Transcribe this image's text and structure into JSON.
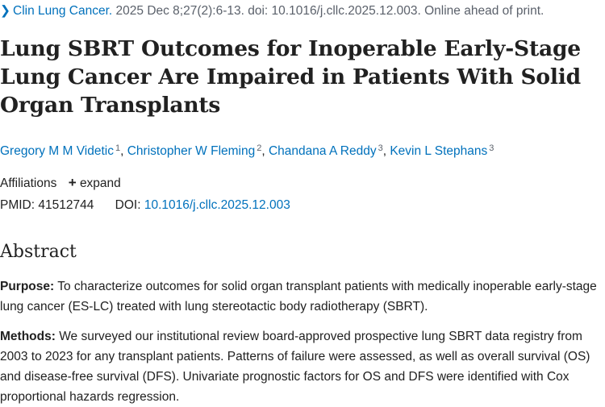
{
  "citation": {
    "journal": "Clin Lung Cancer.",
    "details": " 2025 Dec 8;27(2):6-13. doi: 10.1016/j.cllc.2025.12.003. Online ahead of print."
  },
  "title": "Lung SBRT Outcomes for Inoperable Early-Stage Lung Cancer Are Impaired in Patients With Solid Organ Transplants",
  "authors": [
    {
      "name": "Gregory M M Videtic",
      "sup": "1"
    },
    {
      "name": "Christopher W Fleming",
      "sup": "2"
    },
    {
      "name": "Chandana A Reddy",
      "sup": "3"
    },
    {
      "name": "Kevin L Stephans",
      "sup": "3"
    }
  ],
  "affiliations": {
    "label": "Affiliations",
    "expand_label": "expand"
  },
  "ids": {
    "pmid_label": "PMID:",
    "pmid": "41512744",
    "doi_label": "DOI:",
    "doi": "10.1016/j.cllc.2025.12.003"
  },
  "abstract": {
    "heading": "Abstract",
    "purpose_label": "Purpose:",
    "purpose_text": " To characterize outcomes for solid organ transplant patients with medically inoperable early-stage lung cancer (ES-LC) treated with lung stereotactic body radiotherapy (SBRT).",
    "methods_label": "Methods:",
    "methods_text": " We surveyed our institutional review board-approved prospective lung SBRT data registry from 2003 to 2023 for any transplant patients. Patterns of failure were assessed, as well as overall survival (OS) and disease-free survival (DFS). Univariate prognostic factors for OS and DFS were identified with Cox proportional hazards regression."
  },
  "colors": {
    "link": "#0071bc",
    "text": "#212121",
    "muted": "#5b616b"
  }
}
